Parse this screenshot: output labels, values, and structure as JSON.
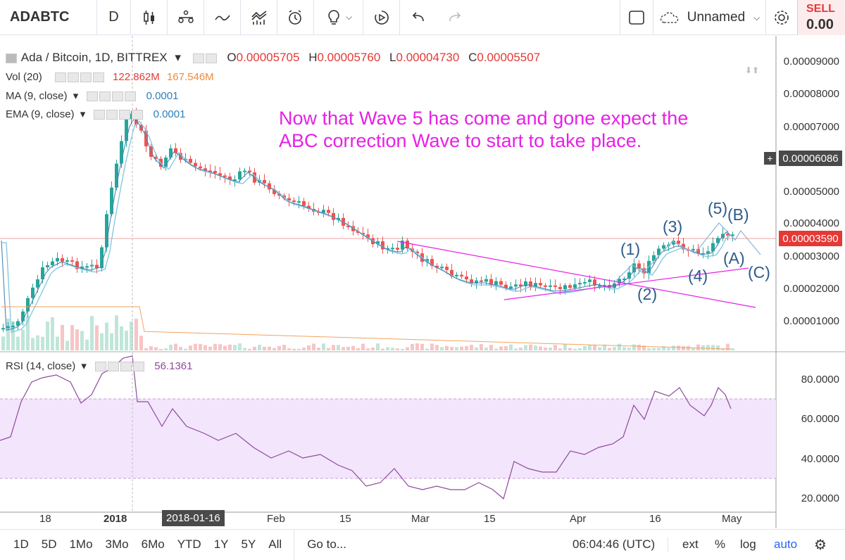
{
  "toolbar": {
    "symbol": "ADABTC",
    "interval": "D",
    "layout_name": "Unnamed",
    "sell_label": "SELL",
    "sell_value": "0.00"
  },
  "legend": {
    "main": "Ada / Bitcoin, 1D, BITTREX",
    "open_label": "O",
    "open": "0.00005705",
    "high_label": "H",
    "high": "0.00005760",
    "low_label": "L",
    "low": "0.00004730",
    "close_label": "C",
    "close": "0.00005507",
    "vol_label": "Vol (20)",
    "vol_value1": "122.862M",
    "vol_value2": "167.546M",
    "ma_label": "MA (9, close)",
    "ma_value": "0.0001",
    "ema_label": "EMA (9, close)",
    "ema_value": "0.0001",
    "rsi_label": "RSI (14, close)",
    "rsi_value": "56.1361"
  },
  "annotation": "Now that Wave 5 has come and gone expect the\nABC correction Wave to start to take place.",
  "waves": {
    "w1": "(1)",
    "w2": "(2)",
    "w3": "(3)",
    "w4": "(4)",
    "w5": "(5)",
    "a": "(A)",
    "b": "(B)",
    "c": "(C)"
  },
  "price_axis": [
    "0.00009000",
    "0.00008000",
    "0.00007000",
    "0.00005000",
    "0.00004000",
    "0.00003000",
    "0.00002000",
    "0.00001000"
  ],
  "price_tags": {
    "crosshair": "0.00006086",
    "last": "0.00003590"
  },
  "rsi_axis": [
    "80.0000",
    "60.0000",
    "40.0000",
    "20.0000"
  ],
  "time_axis": [
    "18",
    "2018",
    "2018-01-16",
    "Feb",
    "15",
    "Mar",
    "15",
    "Apr",
    "16",
    "May"
  ],
  "bottom": {
    "ranges": [
      "1D",
      "5D",
      "1Mo",
      "3Mo",
      "6Mo",
      "YTD",
      "1Y",
      "5Y",
      "All"
    ],
    "goto": "Go to...",
    "time": "06:04:46 (UTC)",
    "ext": "ext",
    "pct": "%",
    "log": "log",
    "auto": "auto"
  },
  "colors": {
    "up": "#26a69a",
    "down": "#ef5350",
    "annotation": "#e621e6",
    "wave_label": "#2e5b8a",
    "rsi_line": "#8e4a9e",
    "rsi_band": "#f3e5fb"
  }
}
